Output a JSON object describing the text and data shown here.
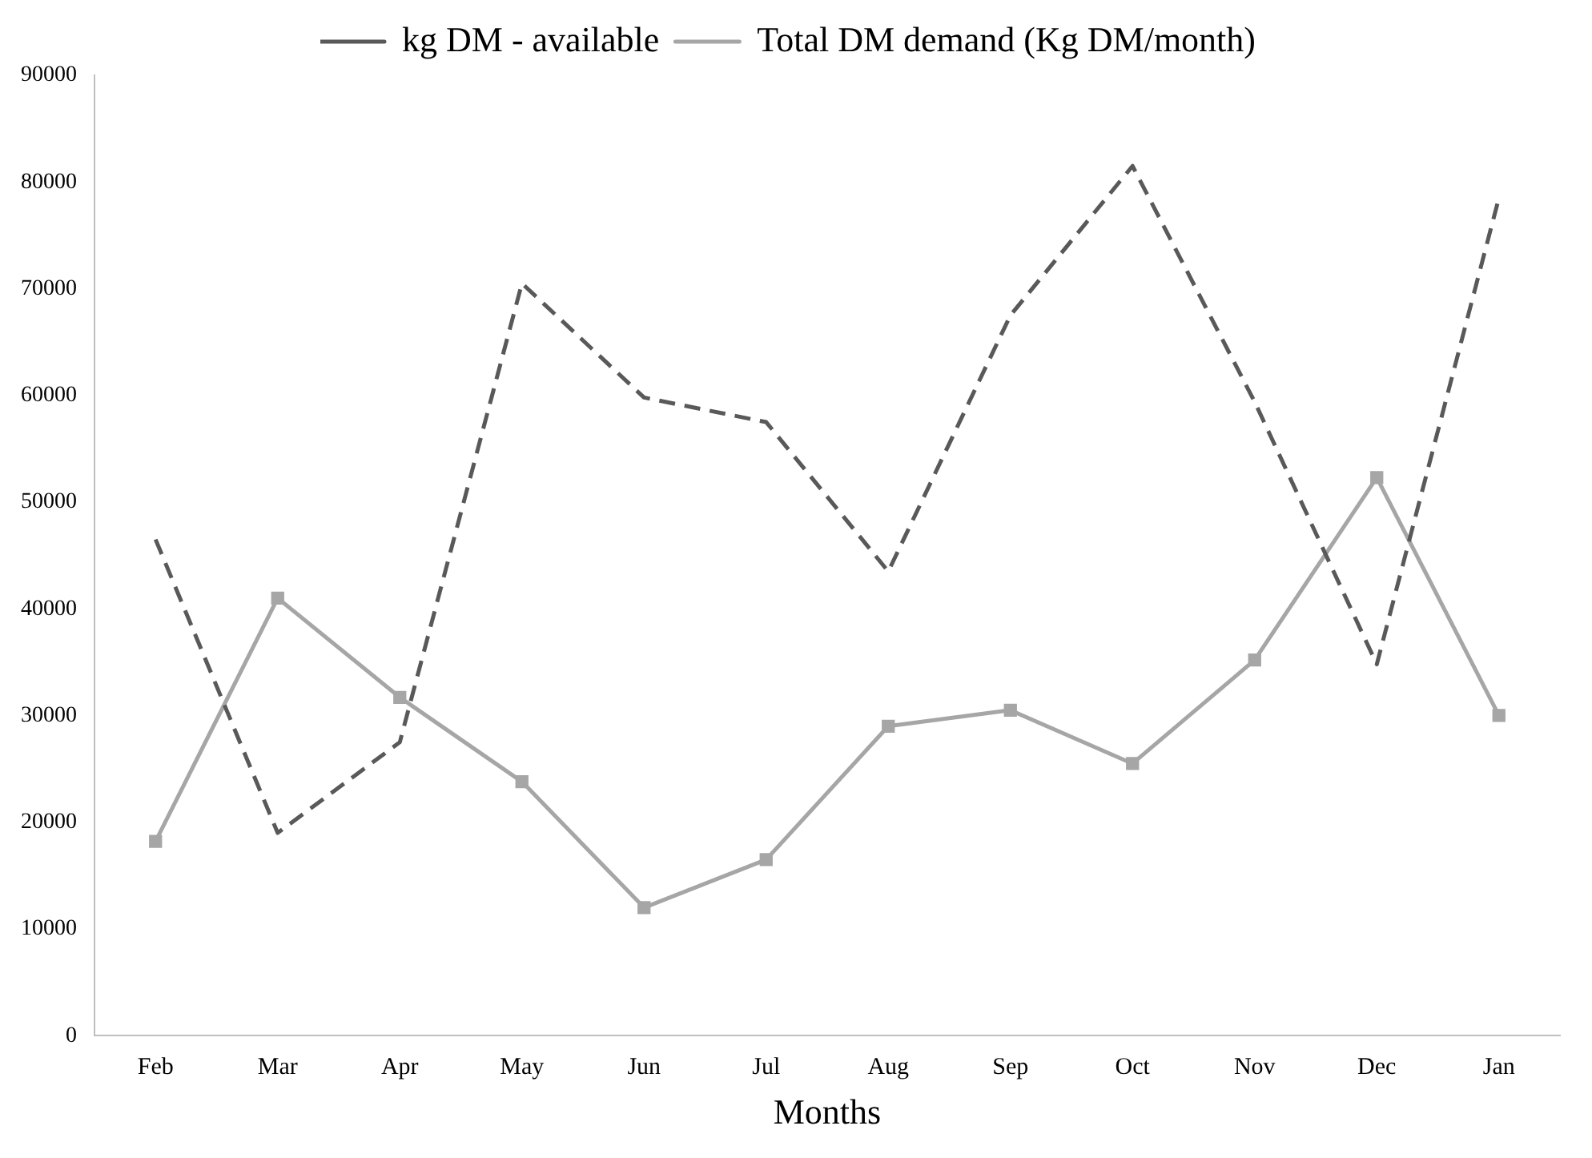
{
  "chart_data": {
    "type": "line",
    "xlabel": "Months",
    "categories": [
      "Feb",
      "Mar",
      "Apr",
      "May",
      "Jun",
      "Jul",
      "Aug",
      "Sep",
      "Oct",
      "Nov",
      "Dec",
      "Jan"
    ],
    "series": [
      {
        "name": "kg DM - available",
        "color": "#595959",
        "line_style": "dashed",
        "marker": "none",
        "values": [
          46500,
          19000,
          27500,
          70500,
          59800,
          57500,
          43500,
          67500,
          81500,
          59400,
          34800,
          78500
        ]
      },
      {
        "name": "Total DM demand (Kg DM/month)",
        "color": "#a6a6a6",
        "line_style": "solid",
        "marker": "square",
        "values": [
          18200,
          41000,
          31700,
          23800,
          12000,
          16500,
          29000,
          30500,
          25500,
          35200,
          52300,
          30000
        ]
      }
    ],
    "ylim": [
      0,
      90000
    ],
    "yticks": [
      0,
      10000,
      20000,
      30000,
      40000,
      50000,
      60000,
      70000,
      80000,
      90000
    ],
    "grid": false,
    "legend": "top"
  }
}
